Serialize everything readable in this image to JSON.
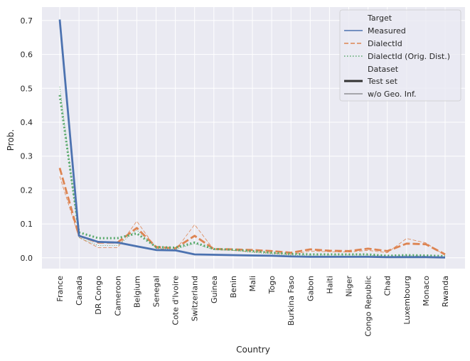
{
  "chart_data": {
    "type": "line",
    "xlabel": "Country",
    "ylabel": "Prob.",
    "ylim": [
      -0.035,
      0.735
    ],
    "yticks": [
      0.0,
      0.1,
      0.2,
      0.3,
      0.4,
      0.5,
      0.6,
      0.7
    ],
    "ytick_labels": [
      "0.0",
      "0.1",
      "0.2",
      "0.3",
      "0.4",
      "0.5",
      "0.6",
      "0.7"
    ],
    "grid": true,
    "legend_position": "top-right",
    "categories": [
      "France",
      "Canada",
      "DR Congo",
      "Cameroon",
      "Belgium",
      "Senegal",
      "Cote d'Ivoire",
      "Switzerland",
      "Guinea",
      "Benin",
      "Mali",
      "Togo",
      "Burkina Faso",
      "Gabon",
      "Haiti",
      "Niger",
      "Congo Republic",
      "Chad",
      "Luxembourg",
      "Monaco",
      "Rwanda"
    ],
    "legend": {
      "target_title": "Target",
      "dataset_title": "Dataset",
      "targets": [
        {
          "label": "Measured",
          "color": "#4c72b0",
          "dash": "solid"
        },
        {
          "label": "DialectId",
          "color": "#dd8452",
          "dash": "dashed"
        },
        {
          "label": "DialectId (Orig. Dist.)",
          "color": "#55a868",
          "dash": "dotted"
        }
      ],
      "datasets": [
        {
          "label": "Test set",
          "width": "thick"
        },
        {
          "label": "w/o Geo. Inf.",
          "width": "thin"
        }
      ]
    },
    "series": [
      {
        "name": "Measured",
        "dataset": "Test set",
        "color": "#4c72b0",
        "dash": "solid",
        "width": "thick",
        "values": [
          0.703,
          0.065,
          0.047,
          0.045,
          0.034,
          0.023,
          0.022,
          0.01,
          0.009,
          0.008,
          0.007,
          0.006,
          0.004,
          0.003,
          0.003,
          0.003,
          0.003,
          0.002,
          0.002,
          0.002,
          0.001
        ]
      },
      {
        "name": "DialectId",
        "dataset": "Test set",
        "color": "#dd8452",
        "dash": "dashed",
        "width": "thick",
        "values": [
          0.265,
          0.065,
          0.045,
          0.045,
          0.088,
          0.032,
          0.028,
          0.065,
          0.026,
          0.025,
          0.023,
          0.02,
          0.015,
          0.025,
          0.021,
          0.02,
          0.027,
          0.02,
          0.042,
          0.04,
          0.01
        ]
      },
      {
        "name": "DialectId (Orig. Dist.)",
        "dataset": "Test set",
        "color": "#55a868",
        "dash": "dotted",
        "width": "thick",
        "values": [
          0.48,
          0.075,
          0.058,
          0.058,
          0.072,
          0.032,
          0.03,
          0.045,
          0.026,
          0.024,
          0.02,
          0.015,
          0.012,
          0.01,
          0.01,
          0.01,
          0.01,
          0.006,
          0.008,
          0.007,
          0.005
        ]
      },
      {
        "name": "DialectId",
        "dataset": "w/o Geo. Inf.",
        "color": "#dd8452",
        "dash": "dashed",
        "width": "thin",
        "values": [
          0.24,
          0.06,
          0.03,
          0.03,
          0.108,
          0.028,
          0.022,
          0.098,
          0.024,
          0.022,
          0.018,
          0.014,
          0.01,
          0.02,
          0.018,
          0.017,
          0.022,
          0.015,
          0.057,
          0.044,
          0.007
        ]
      },
      {
        "name": "DialectId (Orig. Dist.)",
        "dataset": "w/o Geo. Inf.",
        "color": "#55a868",
        "dash": "dotted",
        "width": "thin",
        "values": [
          0.505,
          0.06,
          0.036,
          0.036,
          0.082,
          0.028,
          0.025,
          0.042,
          0.024,
          0.022,
          0.016,
          0.012,
          0.008,
          0.008,
          0.008,
          0.008,
          0.008,
          0.004,
          0.006,
          0.005,
          0.003
        ]
      }
    ]
  }
}
